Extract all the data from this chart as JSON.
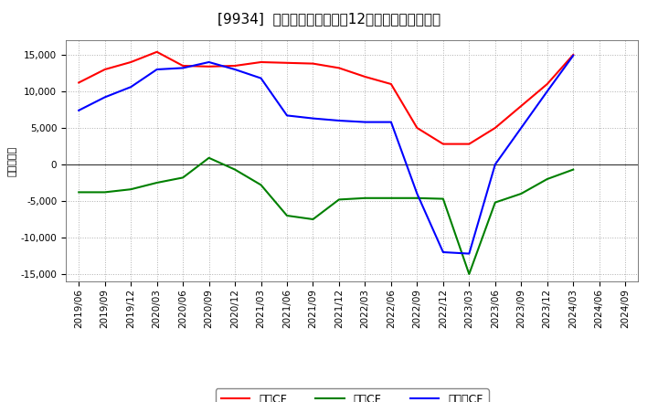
{
  "title": "[9934]  キャッシュフローの12か月移動合計の推移",
  "ylabel": "（百万円）",
  "ylim": [
    -16000,
    17000
  ],
  "yticks": [
    -15000,
    -10000,
    -5000,
    0,
    5000,
    10000,
    15000
  ],
  "background_color": "#ffffff",
  "plot_bg_color": "#ffffff",
  "grid_color": "#b0b0b0",
  "x_labels": [
    "2019/06",
    "2019/09",
    "2019/12",
    "2020/03",
    "2020/06",
    "2020/09",
    "2020/12",
    "2021/03",
    "2021/06",
    "2021/09",
    "2021/12",
    "2022/03",
    "2022/06",
    "2022/09",
    "2022/12",
    "2023/03",
    "2023/06",
    "2023/09",
    "2023/12",
    "2024/03",
    "2024/06",
    "2024/09"
  ],
  "operating_cf": [
    11200,
    13000,
    14000,
    15400,
    13500,
    13400,
    13500,
    14000,
    13900,
    13800,
    13200,
    12000,
    11000,
    5000,
    2800,
    2800,
    5000,
    8000,
    11000,
    15000,
    null,
    null
  ],
  "investing_cf": [
    -3800,
    -3800,
    -3400,
    -2500,
    -1800,
    900,
    -700,
    -2800,
    -7000,
    -7500,
    -4800,
    -4600,
    -4600,
    -4600,
    -4700,
    -15000,
    -5200,
    -4000,
    -2000,
    -700,
    null,
    null
  ],
  "free_cf": [
    7400,
    9200,
    10600,
    13000,
    13200,
    14000,
    13000,
    11800,
    6700,
    6300,
    6000,
    5800,
    5800,
    -4000,
    -12000,
    -12200,
    0,
    5000,
    10000,
    14900,
    null,
    null
  ],
  "line_colors": {
    "operating": "#ff0000",
    "investing": "#008000",
    "free": "#0000ff"
  },
  "legend_labels": [
    "営業CF",
    "投資CF",
    "フリーCF"
  ],
  "title_fontsize": 11,
  "tick_fontsize": 7.5,
  "legend_fontsize": 9,
  "ylabel_fontsize": 8
}
